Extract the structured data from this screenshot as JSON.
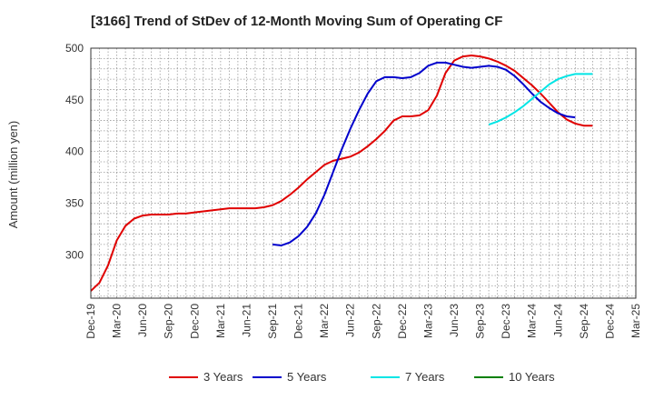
{
  "chart_data": {
    "type": "line",
    "title": "[3166]  Trend of StDev of 12-Month Moving Sum of Operating CF",
    "xlabel": "",
    "ylabel": "Amount (million yen)",
    "x_tick_labels": [
      "Dec-19",
      "Mar-20",
      "Jun-20",
      "Sep-20",
      "Dec-20",
      "Mar-21",
      "Jun-21",
      "Sep-21",
      "Dec-21",
      "Mar-22",
      "Jun-22",
      "Sep-22",
      "Dec-22",
      "Mar-23",
      "Jun-23",
      "Sep-23",
      "Dec-23",
      "Mar-24",
      "Jun-24",
      "Sep-24",
      "Dec-24",
      "Mar-25"
    ],
    "y_ticks": [
      300,
      350,
      400,
      450,
      500
    ],
    "ylim": [
      258,
      500
    ],
    "grid": true,
    "legend_position": "bottom",
    "series": [
      {
        "name": "3 Years",
        "color": "#e00000",
        "start_index": 0,
        "values": [
          265,
          273,
          290,
          314,
          328,
          335,
          338,
          339,
          339,
          339,
          340,
          340,
          341,
          342,
          343,
          344,
          345,
          345,
          345,
          345,
          346,
          348,
          352,
          358,
          365,
          373,
          380,
          387,
          391,
          393,
          395,
          399,
          405,
          412,
          420,
          430,
          434,
          434,
          435,
          440,
          454,
          476,
          488,
          492,
          493,
          492,
          490,
          487,
          483,
          478,
          471,
          464,
          456,
          447,
          438,
          431,
          427,
          425,
          425
        ]
      },
      {
        "name": "5 Years",
        "color": "#0000cc",
        "start_index": 21,
        "values": [
          310,
          309,
          312,
          318,
          327,
          340,
          358,
          380,
          402,
          422,
          440,
          456,
          468,
          472,
          472,
          471,
          472,
          476,
          483,
          486,
          486,
          484,
          482,
          481,
          482,
          483,
          482,
          479,
          473,
          465,
          456,
          448,
          442,
          437,
          434,
          433
        ]
      },
      {
        "name": "7 Years",
        "color": "#00e5e5",
        "start_index": 46,
        "values": [
          426,
          429,
          433,
          438,
          444,
          451,
          458,
          465,
          470,
          473,
          475,
          475,
          475
        ]
      },
      {
        "name": "10 Years",
        "color": "#008000",
        "start_index": 0,
        "values": []
      }
    ]
  }
}
